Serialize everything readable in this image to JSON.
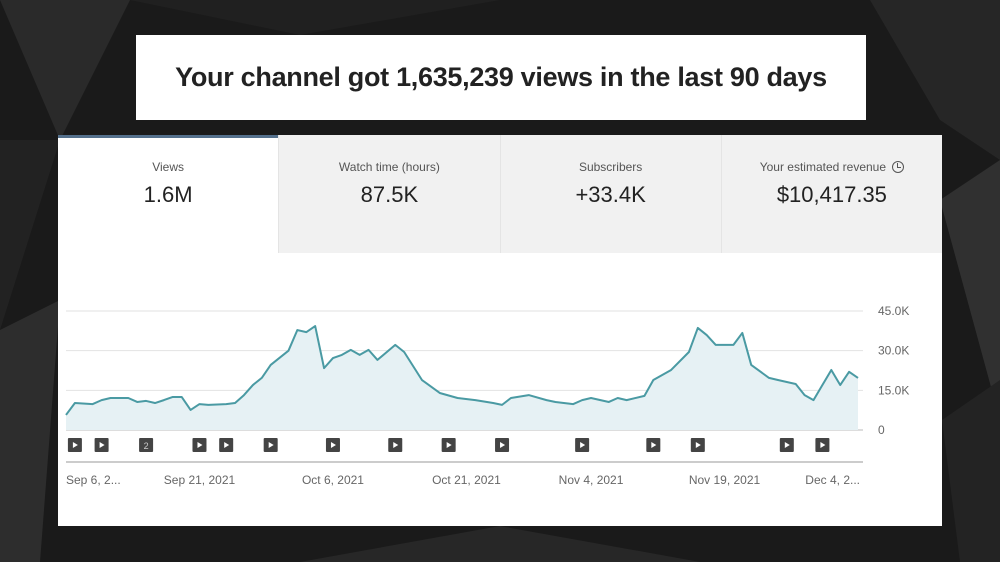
{
  "headline": "Your channel got 1,635,239 views in the last 90 days",
  "tabs": [
    {
      "label": "Views",
      "value": "1.6M",
      "active": true
    },
    {
      "label": "Watch time (hours)",
      "value": "87.5K"
    },
    {
      "label": "Subscribers",
      "value": "+33.4K"
    },
    {
      "label": "Your estimated revenue",
      "value": "$10,417.35",
      "icon": "clock-icon"
    }
  ],
  "colors": {
    "line": "#4a9aa3",
    "fill": "#e6f1f4",
    "accent": "#54708c"
  },
  "chart_data": {
    "type": "area",
    "title": "Views",
    "xlabel": "",
    "ylabel": "",
    "xlim": [
      0,
      89
    ],
    "ylim": [
      0,
      45000
    ],
    "yticks": [
      {
        "v": 0,
        "label": "0"
      },
      {
        "v": 15000,
        "label": "15.0K"
      },
      {
        "v": 30000,
        "label": "30.0K"
      },
      {
        "v": 45000,
        "label": "45.0K"
      }
    ],
    "xticks": [
      {
        "day": 0,
        "label": "Sep 6, 2..."
      },
      {
        "day": 15,
        "label": "Sep 21, 2021"
      },
      {
        "day": 30,
        "label": "Oct 6, 2021"
      },
      {
        "day": 45,
        "label": "Oct 21, 2021"
      },
      {
        "day": 59,
        "label": "Nov 4, 2021"
      },
      {
        "day": 74,
        "label": "Nov 19, 2021"
      },
      {
        "day": 89,
        "label": "Dec 4, 2..."
      }
    ],
    "grid": true,
    "points": [
      [
        0,
        5700
      ],
      [
        1,
        10200
      ],
      [
        3,
        9800
      ],
      [
        4,
        11300
      ],
      [
        5,
        12100
      ],
      [
        7,
        12100
      ],
      [
        8,
        10600
      ],
      [
        9,
        11000
      ],
      [
        10,
        10200
      ],
      [
        11,
        11300
      ],
      [
        12,
        12500
      ],
      [
        13,
        12500
      ],
      [
        14,
        7600
      ],
      [
        15,
        9800
      ],
      [
        16,
        9500
      ],
      [
        18,
        9800
      ],
      [
        19,
        10200
      ],
      [
        20,
        13200
      ],
      [
        21,
        17000
      ],
      [
        22,
        19700
      ],
      [
        23,
        24600
      ],
      [
        25,
        30000
      ],
      [
        26,
        37800
      ],
      [
        27,
        37000
      ],
      [
        28,
        39300
      ],
      [
        29,
        23400
      ],
      [
        30,
        27200
      ],
      [
        31,
        28400
      ],
      [
        32,
        30300
      ],
      [
        33,
        28400
      ],
      [
        34,
        30300
      ],
      [
        35,
        26500
      ],
      [
        37,
        32200
      ],
      [
        38,
        29500
      ],
      [
        40,
        18900
      ],
      [
        42,
        14000
      ],
      [
        44,
        12100
      ],
      [
        46,
        11300
      ],
      [
        48,
        10200
      ],
      [
        49,
        9500
      ],
      [
        50,
        12100
      ],
      [
        52,
        13200
      ],
      [
        54,
        11300
      ],
      [
        55,
        10600
      ],
      [
        57,
        9800
      ],
      [
        58,
        11300
      ],
      [
        59,
        12100
      ],
      [
        61,
        10600
      ],
      [
        62,
        12100
      ],
      [
        63,
        11300
      ],
      [
        65,
        12900
      ],
      [
        66,
        18900
      ],
      [
        68,
        22700
      ],
      [
        70,
        29500
      ],
      [
        71,
        38600
      ],
      [
        72,
        35900
      ],
      [
        73,
        32200
      ],
      [
        75,
        32200
      ],
      [
        76,
        36700
      ],
      [
        77,
        24600
      ],
      [
        79,
        19700
      ],
      [
        80,
        18900
      ],
      [
        82,
        17400
      ],
      [
        83,
        13200
      ],
      [
        84,
        11300
      ],
      [
        85,
        17000
      ],
      [
        86,
        22700
      ],
      [
        87,
        17000
      ],
      [
        88,
        22000
      ],
      [
        89,
        19700
      ]
    ],
    "markers": [
      {
        "day": 1
      },
      {
        "day": 4
      },
      {
        "day": 9,
        "label": "2"
      },
      {
        "day": 15
      },
      {
        "day": 18
      },
      {
        "day": 23
      },
      {
        "day": 30
      },
      {
        "day": 37
      },
      {
        "day": 43
      },
      {
        "day": 49
      },
      {
        "day": 58
      },
      {
        "day": 66
      },
      {
        "day": 71
      },
      {
        "day": 81
      },
      {
        "day": 85
      }
    ]
  }
}
